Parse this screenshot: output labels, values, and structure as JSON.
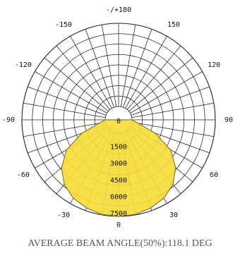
{
  "caption": "AVERAGE BEAM ANGLE(50%):118.1 DEG",
  "chart_data": {
    "type": "polar",
    "angle_labels": [
      {
        "angle": 180,
        "text": "-/+180"
      },
      {
        "angle": 150,
        "text": "150"
      },
      {
        "angle": -150,
        "text": "-150"
      },
      {
        "angle": 120,
        "text": "120"
      },
      {
        "angle": -120,
        "text": "-120"
      },
      {
        "angle": 90,
        "text": "90"
      },
      {
        "angle": -90,
        "text": "-90"
      },
      {
        "angle": 60,
        "text": "60"
      },
      {
        "angle": -60,
        "text": "-60"
      },
      {
        "angle": 30,
        "text": "30"
      },
      {
        "angle": -30,
        "text": "-30"
      },
      {
        "angle": 0,
        "text": "0"
      }
    ],
    "radial_ticks": [
      {
        "value": 0,
        "text": "0"
      },
      {
        "value": 1500,
        "text": "1500"
      },
      {
        "value": 3000,
        "text": "3000"
      },
      {
        "value": 4500,
        "text": "4500"
      },
      {
        "value": 6000,
        "text": "6000"
      },
      {
        "value": 7500,
        "text": "7500"
      }
    ],
    "rmax": 7500,
    "angle_step": 10,
    "grid": true,
    "series": [
      {
        "color": "#f5dc3a",
        "angles": [
          -90,
          -80,
          -70,
          -60,
          -50,
          -40,
          -30,
          -20,
          -10,
          0,
          10,
          20,
          30,
          40,
          50,
          60,
          70,
          80,
          90
        ],
        "values": [
          0,
          600,
          2300,
          4200,
          5500,
          6400,
          6950,
          7250,
          7450,
          7500,
          7450,
          7250,
          6950,
          6400,
          5500,
          4200,
          2300,
          600,
          0
        ]
      }
    ]
  }
}
